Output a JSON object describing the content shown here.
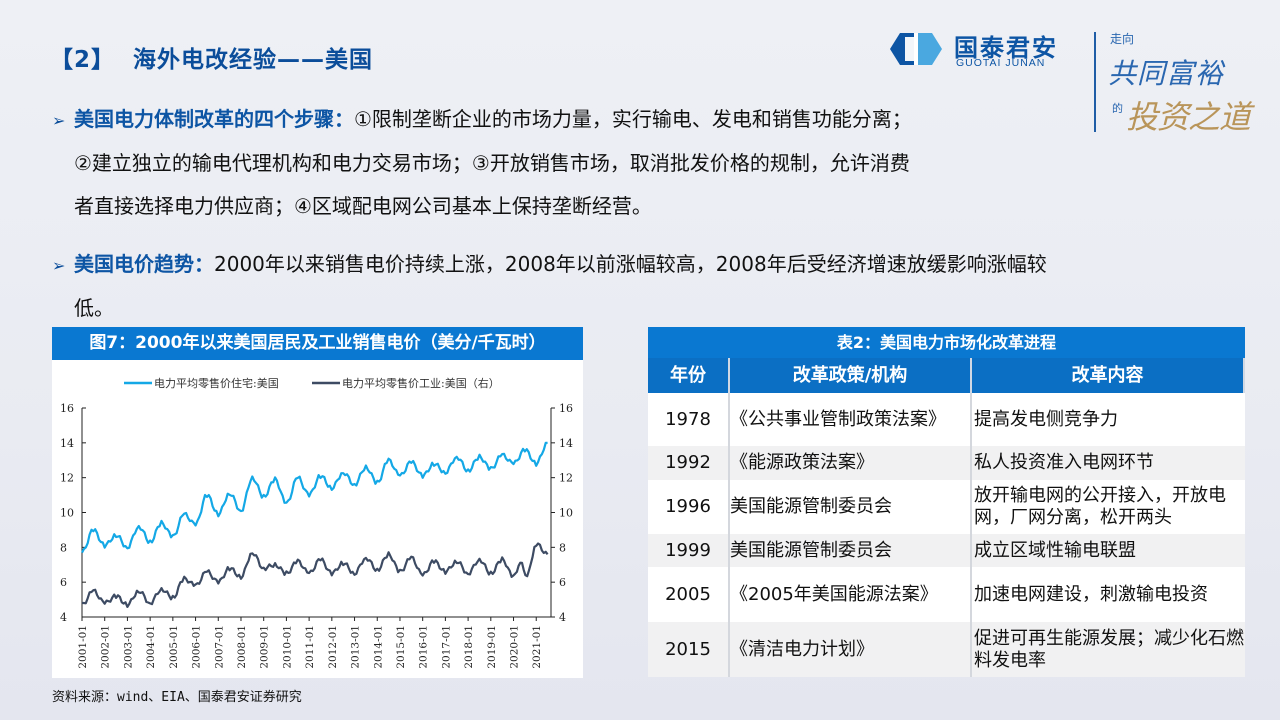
{
  "header": {
    "section_number": "【2】",
    "title": "海外电改经验——美国"
  },
  "logo": {
    "name_cn": "国泰君安",
    "name_en": "GUOTAI JUNAN",
    "slogan_1": "走向",
    "slogan_2": "共同富裕",
    "slogan_3": "的",
    "slogan_4": "投资之道",
    "colors": {
      "brand_blue": "#0d55a4",
      "light_blue": "#4aa8e0",
      "gold": "#b9955a"
    }
  },
  "bullets": [
    {
      "lead": "美国电力体制改革的四个步骤：",
      "lines": [
        "①限制垄断企业的市场力量，实行输电、发电和销售功能分离；",
        "②建立独立的输电代理机构和电力交易市场；③开放销售市场，取消批发价格的规制，允许消费",
        "者直接选择电力供应商；④区域配电网公司基本上保持垄断经营。"
      ]
    },
    {
      "lead": "美国电价趋势：",
      "lines": [
        "2000年以来销售电价持续上涨，2008年以前涨幅较高，2008年后受经济增速放缓影响涨幅较",
        "低。"
      ]
    }
  ],
  "chart": {
    "heading": "图7：2000年以来美国居民及工业销售电价（美分/千瓦时）",
    "source": "资料来源：wind、EIA、国泰君安证券研究"
  },
  "chart_data": {
    "type": "line",
    "title": "图7：2000年以来美国居民及工业销售电价（美分/千瓦时）",
    "xlabel": "",
    "ylabel": "美分/千瓦时",
    "x_ticks": [
      "2001-01",
      "2002-01",
      "2003-01",
      "2004-01",
      "2005-01",
      "2006-01",
      "2007-01",
      "2008-01",
      "2009-01",
      "2010-01",
      "2011-01",
      "2012-01",
      "2013-01",
      "2014-01",
      "2015-01",
      "2016-01",
      "2017-01",
      "2018-01",
      "2019-01",
      "2020-01",
      "2021-01"
    ],
    "y_left": {
      "range": [
        4,
        16
      ],
      "ticks": [
        4,
        6,
        8,
        10,
        12,
        14,
        16
      ]
    },
    "y_right": {
      "range": [
        4,
        16
      ],
      "ticks": [
        4,
        6,
        8,
        10,
        12,
        14,
        16
      ]
    },
    "grid": false,
    "legend_position": "top",
    "series": [
      {
        "name": "电力平均零售价住宅:美国",
        "axis": "left",
        "color": "#14a8e6",
        "x": [
          2001.0,
          2001.5,
          2002.0,
          2002.5,
          2003.0,
          2003.5,
          2004.0,
          2004.5,
          2005.0,
          2005.5,
          2006.0,
          2006.5,
          2007.0,
          2007.5,
          2008.0,
          2008.5,
          2009.0,
          2009.5,
          2010.0,
          2010.5,
          2011.0,
          2011.5,
          2012.0,
          2012.5,
          2013.0,
          2013.5,
          2014.0,
          2014.5,
          2015.0,
          2015.5,
          2016.0,
          2016.5,
          2017.0,
          2017.5,
          2018.0,
          2018.5,
          2019.0,
          2019.5,
          2020.0,
          2020.5,
          2021.0,
          2021.5
        ],
        "values": [
          7.7,
          9.0,
          8.1,
          8.7,
          8.0,
          9.2,
          8.3,
          9.4,
          8.6,
          9.9,
          9.3,
          11.0,
          9.9,
          11.1,
          10.1,
          12.0,
          10.9,
          11.9,
          10.5,
          12.0,
          11.0,
          12.1,
          11.4,
          12.3,
          11.6,
          12.6,
          11.7,
          13.0,
          12.1,
          12.9,
          12.1,
          12.8,
          12.3,
          13.2,
          12.4,
          13.2,
          12.5,
          13.3,
          12.8,
          13.6,
          12.8,
          14.0
        ]
      },
      {
        "name": "电力平均零售价工业:美国（右）",
        "axis": "right",
        "color": "#3d4b63",
        "x": [
          2001.0,
          2001.5,
          2002.0,
          2002.5,
          2003.0,
          2003.5,
          2004.0,
          2004.5,
          2005.0,
          2005.5,
          2006.0,
          2006.5,
          2007.0,
          2007.5,
          2008.0,
          2008.5,
          2009.0,
          2009.5,
          2010.0,
          2010.5,
          2011.0,
          2011.5,
          2012.0,
          2012.5,
          2013.0,
          2013.5,
          2014.0,
          2014.5,
          2015.0,
          2015.5,
          2016.0,
          2016.5,
          2017.0,
          2017.5,
          2018.0,
          2018.5,
          2019.0,
          2019.5,
          2020.0,
          2020.3,
          2020.6,
          2021.0,
          2021.5
        ],
        "values": [
          4.7,
          5.5,
          4.8,
          5.2,
          4.7,
          5.5,
          4.8,
          5.6,
          5.1,
          6.2,
          5.8,
          6.6,
          6.0,
          6.8,
          6.3,
          7.7,
          6.8,
          7.0,
          6.5,
          7.2,
          6.5,
          7.3,
          6.5,
          7.1,
          6.5,
          7.4,
          6.7,
          7.6,
          6.6,
          7.4,
          6.4,
          7.2,
          6.6,
          7.2,
          6.5,
          7.3,
          6.5,
          7.3,
          6.3,
          7.1,
          6.4,
          8.2,
          7.6
        ]
      }
    ]
  },
  "table": {
    "title": "表2：美国电力市场化改革进程",
    "columns": [
      "年份",
      "改革政策/机构",
      "改革内容"
    ],
    "rows": [
      {
        "year": "1978",
        "policy": "《公共事业管制政策法案》",
        "content": "提高发电侧竞争力"
      },
      {
        "year": "1992",
        "policy": "《能源政策法案》",
        "content": "私人投资准入电网环节"
      },
      {
        "year": "1996",
        "policy": "美国能源管制委员会",
        "content": "放开输电网的公开接入，开放电网，厂网分离，松开两头"
      },
      {
        "year": "1999",
        "policy": "美国能源管制委员会",
        "content": "成立区域性输电联盟"
      },
      {
        "year": "2005",
        "policy": "《2005年美国能源法案》",
        "content": "加速电网建设，刺激输电投资"
      },
      {
        "year": "2015",
        "policy": "《清洁电力计划》",
        "content": "促进可再生能源发展；减少化石燃料发电率"
      }
    ]
  }
}
